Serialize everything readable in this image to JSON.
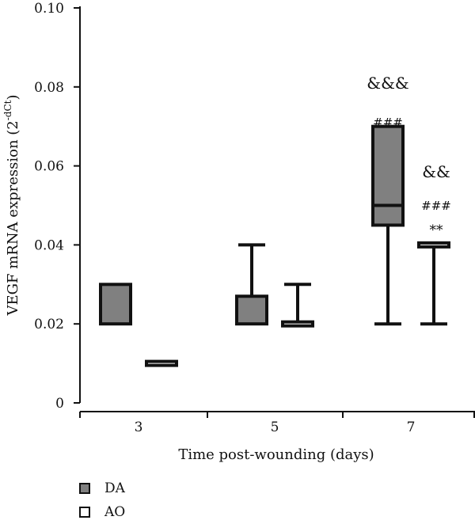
{
  "chart_data": {
    "type": "box",
    "ylabel": "VEGF mRNA expression (2",
    "ylabel_sup": "-dCt",
    "ylabel_end": ")",
    "xlabel": "Time post-wounding (days)",
    "ylim": [
      0,
      0.1
    ],
    "yticks": [
      "0",
      "0.02",
      "0.04",
      "0.06",
      "0.08",
      "0.10"
    ],
    "ytick_values": [
      0,
      0.02,
      0.04,
      0.06,
      0.08,
      0.1
    ],
    "categories": [
      "3",
      "5",
      "7"
    ],
    "series": [
      {
        "name": "DA",
        "color": "#808080",
        "boxes": [
          {
            "category": "3",
            "min": 0.02,
            "q1": 0.02,
            "median": 0.02,
            "q3": 0.03,
            "max": 0.03
          },
          {
            "category": "5",
            "min": 0.02,
            "q1": 0.02,
            "median": 0.02,
            "q3": 0.027,
            "max": 0.04
          },
          {
            "category": "7",
            "min": 0.02,
            "q1": 0.045,
            "median": 0.05,
            "q3": 0.07,
            "max": 0.07
          }
        ]
      },
      {
        "name": "AO",
        "color": "#ffffff",
        "boxes": [
          {
            "category": "3",
            "min": 0.01,
            "q1": 0.01,
            "median": 0.01,
            "q3": 0.01,
            "max": 0.01
          },
          {
            "category": "5",
            "min": 0.02,
            "q1": 0.02,
            "median": 0.02,
            "q3": 0.02,
            "max": 0.03
          },
          {
            "category": "7",
            "min": 0.02,
            "q1": 0.04,
            "median": 0.04,
            "q3": 0.04,
            "max": 0.04
          }
        ]
      }
    ],
    "annotations": [
      {
        "series": "DA",
        "category": "7",
        "lines": [
          "&&&",
          "###"
        ]
      },
      {
        "series": "AO",
        "category": "7",
        "lines": [
          "&&",
          "###",
          "**"
        ]
      }
    ],
    "legend_position": "bottom-left"
  }
}
